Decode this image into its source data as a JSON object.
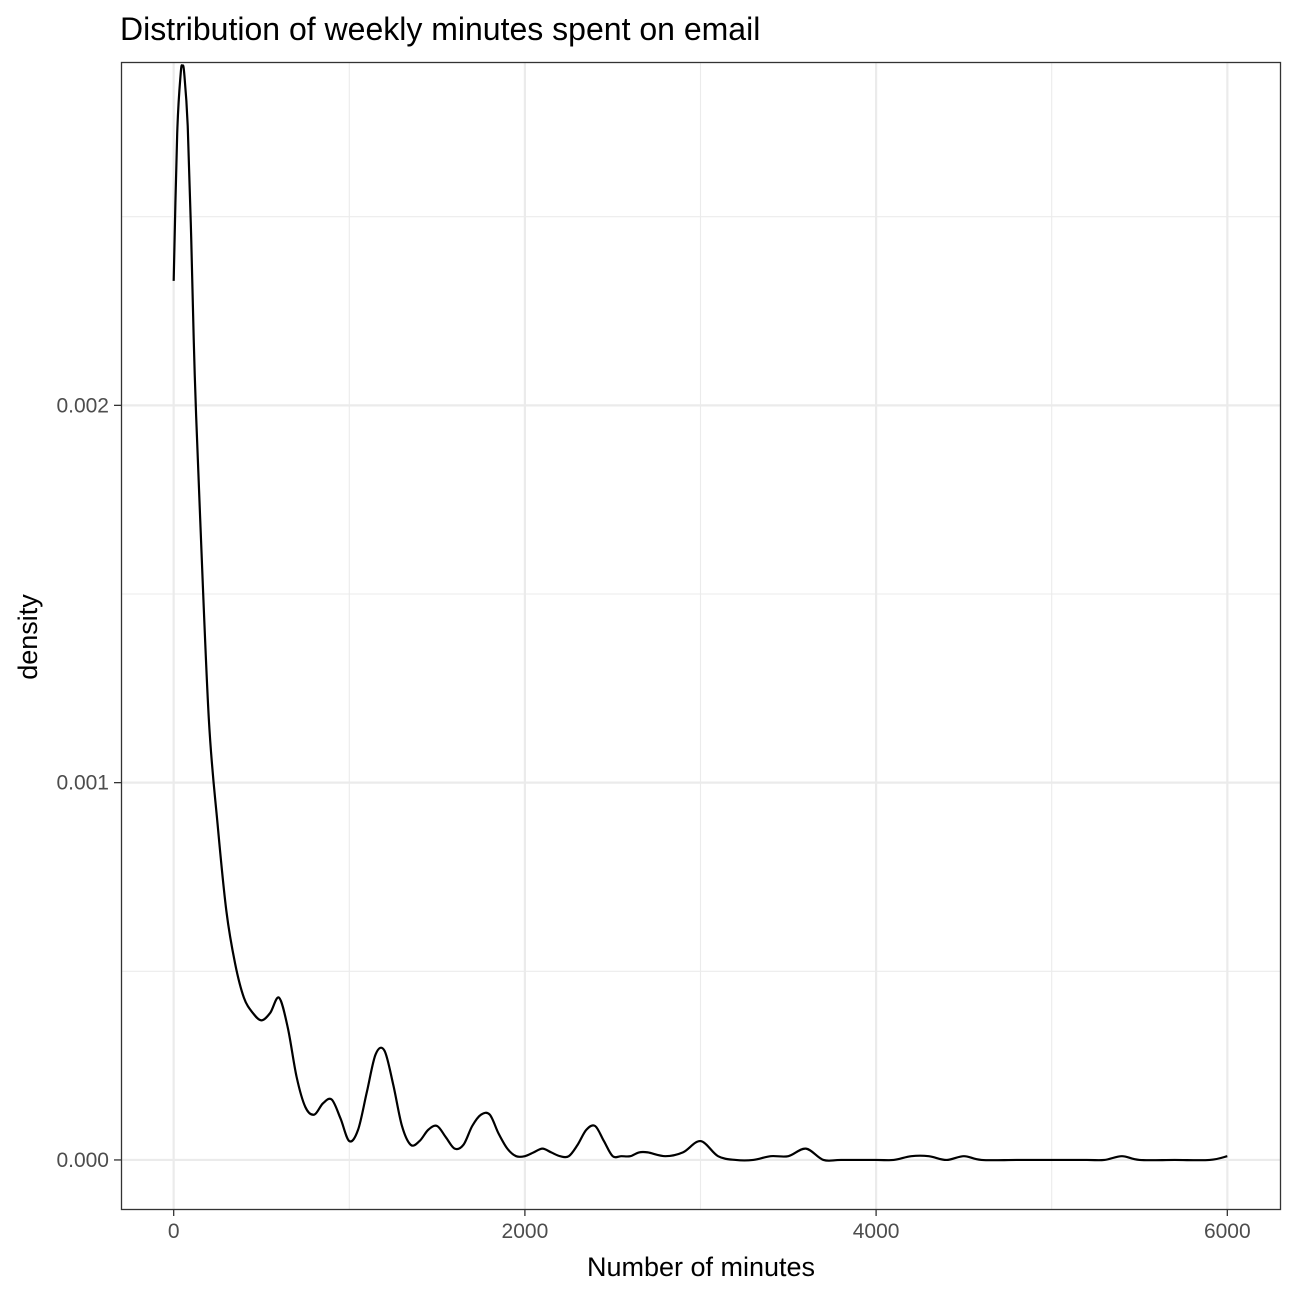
{
  "chart_data": {
    "type": "area",
    "title": "Distribution of weekly minutes spent on email",
    "xlabel": "Number of minutes",
    "ylabel": "density",
    "xlim": [
      -300,
      6300
    ],
    "ylim": [
      -0.00013,
      0.00291
    ],
    "x_ticks": [
      0,
      2000,
      4000,
      6000
    ],
    "x_tick_labels": [
      "0",
      "2000",
      "4000",
      "6000"
    ],
    "y_ticks": [
      0,
      0.001,
      0.002
    ],
    "y_tick_labels": [
      "0.000",
      "0.001",
      "0.002"
    ],
    "x_minor_ticks": [
      1000,
      3000,
      5000
    ],
    "y_minor_ticks": [
      0.0005,
      0.0015,
      0.0025
    ],
    "grid": true,
    "theme": "bw",
    "colors": {
      "line": "#000000",
      "grid": "#ebebeb",
      "panel_border": "#333333",
      "tick_text": "#4d4d4d",
      "background": "#ffffff"
    },
    "series": [
      {
        "x": [
          0,
          20,
          40,
          50,
          60,
          80,
          100,
          120,
          150,
          200,
          250,
          300,
          350,
          400,
          450,
          500,
          550,
          600,
          650,
          700,
          750,
          800,
          850,
          900,
          950,
          1000,
          1050,
          1100,
          1150,
          1200,
          1250,
          1300,
          1350,
          1400,
          1450,
          1500,
          1550,
          1600,
          1650,
          1700,
          1750,
          1800,
          1850,
          1900,
          1950,
          2000,
          2050,
          2100,
          2150,
          2200,
          2250,
          2300,
          2350,
          2400,
          2450,
          2500,
          2550,
          2600,
          2650,
          2700,
          2800,
          2900,
          3000,
          3100,
          3200,
          3300,
          3400,
          3500,
          3600,
          3700,
          3800,
          4000,
          4100,
          4200,
          4300,
          4400,
          4500,
          4600,
          4800,
          5000,
          5200,
          5300,
          5400,
          5500,
          5700,
          5900,
          6000
        ],
        "y": [
          0.00233,
          0.00272,
          0.00288,
          0.0029,
          0.00288,
          0.00274,
          0.00244,
          0.00208,
          0.00171,
          0.00117,
          0.00089,
          0.00066,
          0.00052,
          0.00043,
          0.00039,
          0.00037,
          0.00039,
          0.00043,
          0.00035,
          0.00022,
          0.00014,
          0.00012,
          0.00015,
          0.00016,
          0.00011,
          5e-05,
          8e-05,
          0.00018,
          0.00028,
          0.00029,
          0.0002,
          9e-05,
          4e-05,
          5e-05,
          8e-05,
          9e-05,
          6e-05,
          3e-05,
          4e-05,
          9e-05,
          0.00012,
          0.00012,
          7e-05,
          3e-05,
          1e-05,
          1e-05,
          2e-05,
          3e-05,
          2e-05,
          1e-05,
          1e-05,
          4e-05,
          8e-05,
          9e-05,
          5e-05,
          1e-05,
          1e-05,
          1e-05,
          2e-05,
          2e-05,
          1e-05,
          2e-05,
          5e-05,
          1e-05,
          0.0,
          0.0,
          1e-05,
          1e-05,
          3e-05,
          0.0,
          0.0,
          0.0,
          0.0,
          1e-05,
          1e-05,
          0.0,
          1e-05,
          0.0,
          0.0,
          0.0,
          0.0,
          0.0,
          1e-05,
          0.0,
          0.0,
          0.0,
          1e-05
        ]
      }
    ]
  }
}
